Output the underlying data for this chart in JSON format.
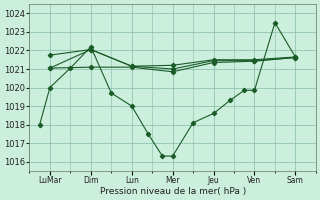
{
  "background_color": "#cceedd",
  "grid_color": "#88bbaa",
  "line_color": "#1a5c28",
  "xlabel": "Pression niveau de la mer( hPa )",
  "ylim": [
    1015.5,
    1024.5
  ],
  "xlim": [
    0.0,
    14.0
  ],
  "major_x_positions": [
    1.0,
    3.0,
    5.0,
    7.0,
    9.0,
    11.0,
    13.0
  ],
  "major_x_labels": [
    "LuMar",
    "Dim",
    "Lun",
    "Mer",
    "Jeu",
    "Ven",
    "Sam"
  ],
  "line1_x": [
    1.0,
    3.0,
    5.0,
    7.0,
    9.0,
    11.0,
    13.0
  ],
  "line1_y": [
    1021.75,
    1022.05,
    1021.15,
    1021.2,
    1021.5,
    1021.5,
    1021.65
  ],
  "line2_x": [
    1.0,
    3.0,
    5.0,
    7.0,
    9.0,
    11.0,
    13.0
  ],
  "line2_y": [
    1021.05,
    1022.05,
    1021.15,
    1021.0,
    1021.45,
    1021.45,
    1021.62
  ],
  "line3_x": [
    1.0,
    3.0,
    5.0,
    7.0,
    9.0,
    11.0,
    13.0
  ],
  "line3_y": [
    1021.05,
    1021.1,
    1021.1,
    1020.85,
    1021.35,
    1021.42,
    1021.62
  ],
  "line4_x": [
    0.5,
    1.0,
    2.0,
    3.0,
    4.0,
    5.0,
    5.8,
    6.5,
    7.0,
    8.0,
    9.0,
    9.8,
    10.5,
    11.0,
    12.0,
    13.0
  ],
  "line4_y": [
    1018.0,
    1020.0,
    1021.05,
    1022.2,
    1019.7,
    1019.0,
    1017.5,
    1016.3,
    1016.3,
    1018.1,
    1018.6,
    1019.3,
    1019.85,
    1019.85,
    1023.5,
    1021.65
  ],
  "xlabel_fontsize": 6.5,
  "ylabel_fontsize": 6.0,
  "xlabel_color": "#222222",
  "tick_color": "#222222"
}
